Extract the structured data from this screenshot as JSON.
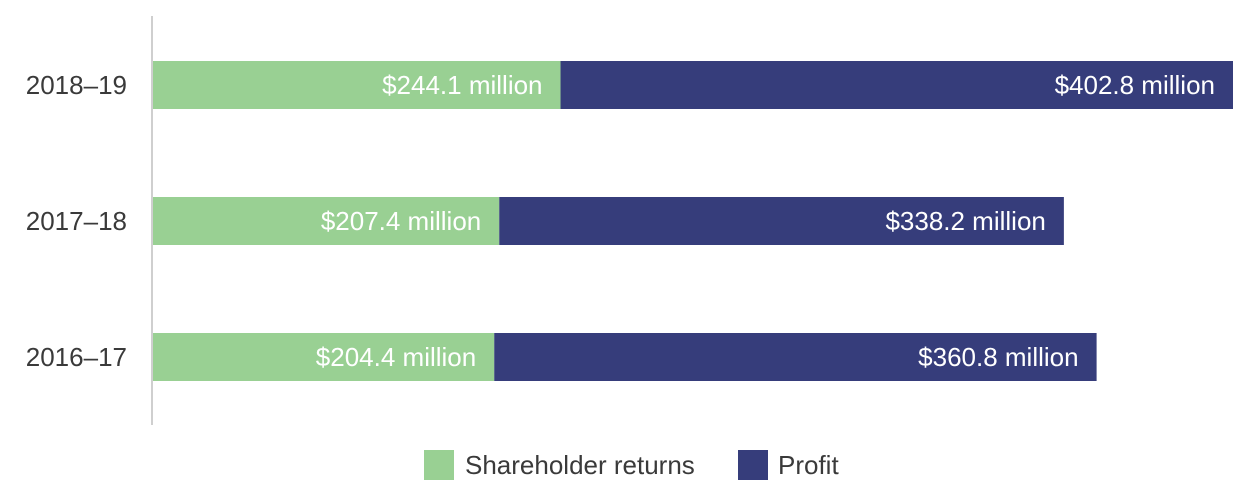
{
  "chart_data": {
    "type": "bar",
    "orientation": "horizontal",
    "stacked": true,
    "categories": [
      "2018–19",
      "2017–18",
      "2016–17"
    ],
    "series": [
      {
        "name": "Shareholder returns",
        "color": "#99d093",
        "values": [
          244.1,
          207.4,
          204.4
        ],
        "labels": [
          "$244.1 million",
          "$207.4 million",
          "$204.4 million"
        ]
      },
      {
        "name": "Profit",
        "color": "#363d7b",
        "values": [
          402.8,
          338.2,
          360.8
        ],
        "labels": [
          "$402.8 million",
          "$338.2 million",
          "$360.8 million"
        ]
      }
    ],
    "xlim": [
      0,
      646.9
    ],
    "grid": false,
    "legend": "bottom-center"
  }
}
